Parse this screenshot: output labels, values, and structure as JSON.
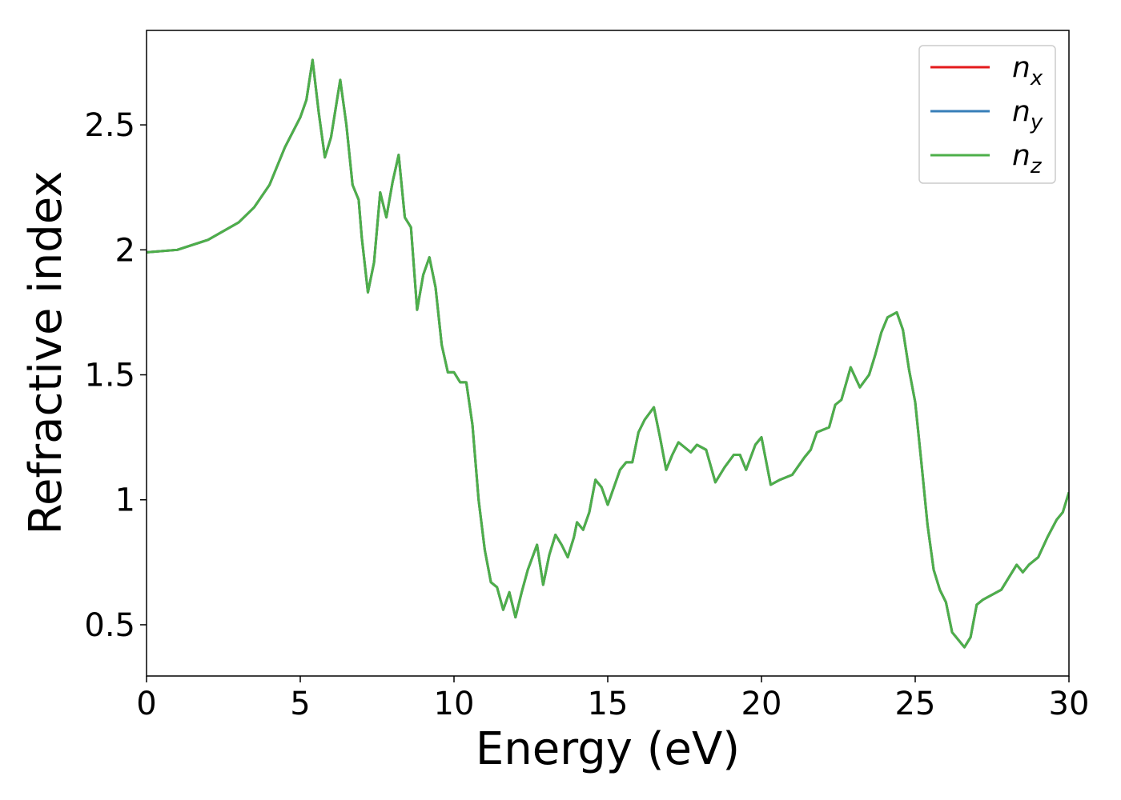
{
  "chart_data": {
    "type": "line",
    "xlabel": "Energy (eV)",
    "ylabel": "Refractive index",
    "x": [
      0,
      1,
      2,
      3,
      3.5,
      4,
      4.5,
      5,
      5.2,
      5.4,
      5.6,
      5.8,
      6.0,
      6.3,
      6.5,
      6.7,
      6.9,
      7.0,
      7.2,
      7.4,
      7.6,
      7.8,
      8.0,
      8.2,
      8.4,
      8.6,
      8.8,
      9.0,
      9.2,
      9.4,
      9.6,
      9.8,
      10.0,
      10.2,
      10.4,
      10.6,
      10.8,
      11.0,
      11.2,
      11.4,
      11.6,
      11.8,
      12.0,
      12.2,
      12.4,
      12.7,
      12.9,
      13.1,
      13.3,
      13.5,
      13.7,
      13.9,
      14.0,
      14.2,
      14.4,
      14.6,
      14.8,
      15.0,
      15.2,
      15.4,
      15.6,
      15.8,
      16.0,
      16.2,
      16.5,
      16.7,
      16.9,
      17.1,
      17.3,
      17.5,
      17.7,
      17.9,
      18.2,
      18.5,
      18.8,
      19.1,
      19.3,
      19.5,
      19.8,
      20.0,
      20.3,
      20.6,
      21.0,
      21.4,
      21.6,
      21.8,
      22.0,
      22.2,
      22.4,
      22.6,
      22.9,
      23.2,
      23.5,
      23.7,
      23.9,
      24.1,
      24.4,
      24.6,
      24.8,
      25.0,
      25.2,
      25.4,
      25.6,
      25.8,
      26.0,
      26.2,
      26.4,
      26.6,
      26.8,
      27.0,
      27.2,
      27.5,
      27.8,
      28.0,
      28.3,
      28.5,
      28.7,
      29.0,
      29.3,
      29.6,
      29.8,
      30.0
    ],
    "series": [
      {
        "name": "n_x",
        "color": "#e41a1c",
        "values": [
          1.99,
          2.0,
          2.04,
          2.11,
          2.17,
          2.26,
          2.41,
          2.53,
          2.6,
          2.76,
          2.55,
          2.37,
          2.45,
          2.68,
          2.5,
          2.26,
          2.2,
          2.05,
          1.83,
          1.95,
          2.23,
          2.13,
          2.27,
          2.38,
          2.13,
          2.09,
          1.76,
          1.9,
          1.97,
          1.85,
          1.62,
          1.51,
          1.51,
          1.47,
          1.47,
          1.3,
          1.0,
          0.8,
          0.67,
          0.65,
          0.56,
          0.63,
          0.53,
          0.63,
          0.72,
          0.82,
          0.66,
          0.78,
          0.86,
          0.82,
          0.77,
          0.85,
          0.91,
          0.88,
          0.95,
          1.08,
          1.05,
          0.98,
          1.05,
          1.12,
          1.15,
          1.15,
          1.27,
          1.32,
          1.37,
          1.25,
          1.12,
          1.18,
          1.23,
          1.21,
          1.19,
          1.22,
          1.2,
          1.07,
          1.13,
          1.18,
          1.18,
          1.12,
          1.22,
          1.25,
          1.06,
          1.08,
          1.1,
          1.17,
          1.2,
          1.27,
          1.28,
          1.29,
          1.38,
          1.4,
          1.53,
          1.45,
          1.5,
          1.58,
          1.67,
          1.73,
          1.75,
          1.68,
          1.52,
          1.39,
          1.15,
          0.9,
          0.72,
          0.64,
          0.59,
          0.47,
          0.44,
          0.41,
          0.45,
          0.58,
          0.6,
          0.62,
          0.64,
          0.68,
          0.74,
          0.71,
          0.74,
          0.77,
          0.85,
          0.92,
          0.95,
          1.03
        ]
      },
      {
        "name": "n_y",
        "color": "#377eb8",
        "values": [
          1.99,
          2.0,
          2.04,
          2.11,
          2.17,
          2.26,
          2.41,
          2.53,
          2.6,
          2.76,
          2.55,
          2.37,
          2.45,
          2.68,
          2.5,
          2.26,
          2.2,
          2.05,
          1.83,
          1.95,
          2.23,
          2.13,
          2.27,
          2.38,
          2.13,
          2.09,
          1.76,
          1.9,
          1.97,
          1.85,
          1.62,
          1.51,
          1.51,
          1.47,
          1.47,
          1.3,
          1.0,
          0.8,
          0.67,
          0.65,
          0.56,
          0.63,
          0.53,
          0.63,
          0.72,
          0.82,
          0.66,
          0.78,
          0.86,
          0.82,
          0.77,
          0.85,
          0.91,
          0.88,
          0.95,
          1.08,
          1.05,
          0.98,
          1.05,
          1.12,
          1.15,
          1.15,
          1.27,
          1.32,
          1.37,
          1.25,
          1.12,
          1.18,
          1.23,
          1.21,
          1.19,
          1.22,
          1.2,
          1.07,
          1.13,
          1.18,
          1.18,
          1.12,
          1.22,
          1.25,
          1.06,
          1.08,
          1.1,
          1.17,
          1.2,
          1.27,
          1.28,
          1.29,
          1.38,
          1.4,
          1.53,
          1.45,
          1.5,
          1.58,
          1.67,
          1.73,
          1.75,
          1.68,
          1.52,
          1.39,
          1.15,
          0.9,
          0.72,
          0.64,
          0.59,
          0.47,
          0.44,
          0.41,
          0.45,
          0.58,
          0.6,
          0.62,
          0.64,
          0.68,
          0.74,
          0.71,
          0.74,
          0.77,
          0.85,
          0.92,
          0.95,
          1.03
        ]
      },
      {
        "name": "n_z",
        "color": "#4daf4a",
        "values": [
          1.99,
          2.0,
          2.04,
          2.11,
          2.17,
          2.26,
          2.41,
          2.53,
          2.6,
          2.76,
          2.55,
          2.37,
          2.45,
          2.68,
          2.5,
          2.26,
          2.2,
          2.05,
          1.83,
          1.95,
          2.23,
          2.13,
          2.27,
          2.38,
          2.13,
          2.09,
          1.76,
          1.9,
          1.97,
          1.85,
          1.62,
          1.51,
          1.51,
          1.47,
          1.47,
          1.3,
          1.0,
          0.8,
          0.67,
          0.65,
          0.56,
          0.63,
          0.53,
          0.63,
          0.72,
          0.82,
          0.66,
          0.78,
          0.86,
          0.82,
          0.77,
          0.85,
          0.91,
          0.88,
          0.95,
          1.08,
          1.05,
          0.98,
          1.05,
          1.12,
          1.15,
          1.15,
          1.27,
          1.32,
          1.37,
          1.25,
          1.12,
          1.18,
          1.23,
          1.21,
          1.19,
          1.22,
          1.2,
          1.07,
          1.13,
          1.18,
          1.18,
          1.12,
          1.22,
          1.25,
          1.06,
          1.08,
          1.1,
          1.17,
          1.2,
          1.27,
          1.28,
          1.29,
          1.38,
          1.4,
          1.53,
          1.45,
          1.5,
          1.58,
          1.67,
          1.73,
          1.75,
          1.68,
          1.52,
          1.39,
          1.15,
          0.9,
          0.72,
          0.64,
          0.59,
          0.47,
          0.44,
          0.41,
          0.45,
          0.58,
          0.6,
          0.62,
          0.64,
          0.68,
          0.74,
          0.71,
          0.74,
          0.77,
          0.85,
          0.92,
          0.95,
          1.03
        ]
      }
    ],
    "xlim": [
      0,
      30
    ],
    "xticks": [
      0,
      5,
      10,
      15,
      20,
      25,
      30
    ],
    "ylim": [
      0.295,
      2.878
    ],
    "yticks": [
      0.5,
      1.0,
      1.5,
      2.0,
      2.5
    ],
    "grid": false,
    "legend": "upper right"
  }
}
